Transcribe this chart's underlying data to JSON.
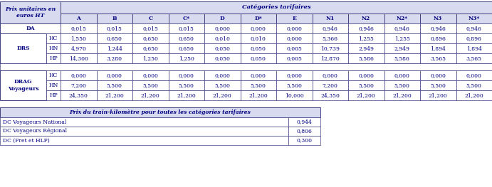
{
  "title_main": "Prix unitaires en\neuros HT",
  "header_categories": "Catégories tarifaires",
  "col_headers": [
    "A",
    "B",
    "C",
    "C*",
    "D",
    "D*",
    "E",
    "N1",
    "N2",
    "N2*",
    "N3",
    "N3*"
  ],
  "row_groups": [
    {
      "label": "DA",
      "subrows": null,
      "values": [
        "0,015",
        "0,015",
        "0,015",
        "0,015",
        "0,000",
        "0,000",
        "0,000",
        "0,946",
        "0,946",
        "0,946",
        "0,946",
        "0,946"
      ]
    },
    {
      "label": "DRS",
      "subrows": [
        "HC",
        "HN",
        "HP"
      ],
      "values": [
        [
          "1,550",
          "0,650",
          "0,650",
          "0,650",
          "0,010",
          "0,010",
          "0,000",
          "5,366",
          "1,255",
          "1,255",
          "0,896",
          "0,896"
        ],
        [
          "4,970",
          "1,244",
          "0,650",
          "0,650",
          "0,050",
          "0,050",
          "0,005",
          "10,739",
          "2,949",
          "2,949",
          "1,894",
          "1,894"
        ],
        [
          "14,300",
          "3,280",
          "1,250",
          "1,250",
          "0,050",
          "0,050",
          "0,005",
          "12,870",
          "5,586",
          "5,586",
          "3,565",
          "3,565"
        ]
      ]
    },
    {
      "label": "DRAG\nVoyageurs",
      "subrows": [
        "HC",
        "HN",
        "HP"
      ],
      "values": [
        [
          "0,000",
          "0,000",
          "0,000",
          "0,000",
          "0,000",
          "0,000",
          "0,000",
          "0,000",
          "0,000",
          "0,000",
          "0,000",
          "0,000"
        ],
        [
          "7,200",
          "5,500",
          "5,500",
          "5,500",
          "5,500",
          "5,500",
          "5,500",
          "7,200",
          "5,500",
          "5,500",
          "5,500",
          "5,500"
        ],
        [
          "24,350",
          "21,200",
          "21,200",
          "21,200",
          "21,200",
          "21,200",
          "10,000",
          "24,350",
          "21,200",
          "21,200",
          "21,200",
          "21,200"
        ]
      ]
    }
  ],
  "subtitle": "Prix du train-kilomètre pour toutes les catégories tarifaires",
  "bottom_rows": [
    {
      "label": "DC Voyageurs National",
      "value": "0,944"
    },
    {
      "label": "DC Voyageurs Régional",
      "value": "0,806"
    },
    {
      "label": "DC (Fret et HLP)",
      "value": "0,300"
    }
  ],
  "header_bg": "#d8daf0",
  "border_color": "#404080",
  "text_color": "#000080",
  "font_size": 5.5,
  "header_font_size": 6.0,
  "fig_w": 6.91,
  "fig_h": 2.63,
  "dpi": 100
}
